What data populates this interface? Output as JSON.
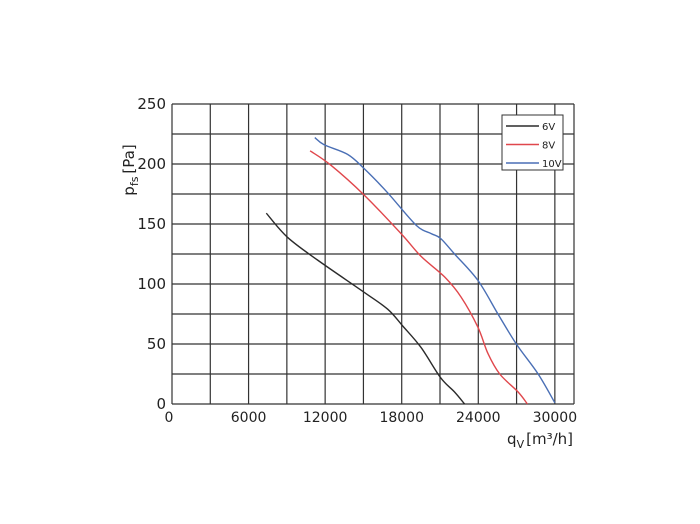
{
  "chart_data": {
    "type": "line",
    "title": "",
    "xlabel": {
      "main": "q",
      "sub": "V",
      "unit": "[m³/h]"
    },
    "ylabel": {
      "main": "p",
      "sub": "fs",
      "unit": "[Pa]"
    },
    "xlim": [
      0,
      31500
    ],
    "ylim": [
      0,
      250
    ],
    "x_ticks": [
      0,
      6000,
      12000,
      18000,
      24000,
      30000
    ],
    "x_grid_step": 3000,
    "y_ticks": [
      0,
      50,
      100,
      150,
      200,
      250
    ],
    "y_grid_step": 25,
    "grid": true,
    "legend_position": "top-right",
    "series": [
      {
        "name": "6V",
        "color": "#2b2b2b",
        "x": [
          7390,
          9040,
          11400,
          15070,
          16900,
          18080,
          19520,
          21040,
          22140,
          22930
        ],
        "y": [
          159,
          139,
          120,
          93,
          79,
          65,
          47,
          22,
          10,
          0
        ]
      },
      {
        "name": "8V",
        "color": "#e0474c",
        "x": [
          10820,
          12450,
          15070,
          17950,
          19520,
          21350,
          22660,
          23970,
          24760,
          25680,
          27120,
          27850
        ],
        "y": [
          211,
          199,
          174,
          142,
          123,
          106,
          89,
          64,
          42,
          25,
          10,
          0
        ]
      },
      {
        "name": "10V",
        "color": "#4a6fb5",
        "x": [
          11190,
          11920,
          13760,
          15070,
          16900,
          19130,
          20310,
          21040,
          22140,
          23970,
          25540,
          26980,
          28690,
          30000
        ],
        "y": [
          222,
          216,
          208,
          196,
          176,
          149,
          142,
          138,
          125,
          103,
          75,
          50,
          25,
          1
        ]
      }
    ]
  }
}
